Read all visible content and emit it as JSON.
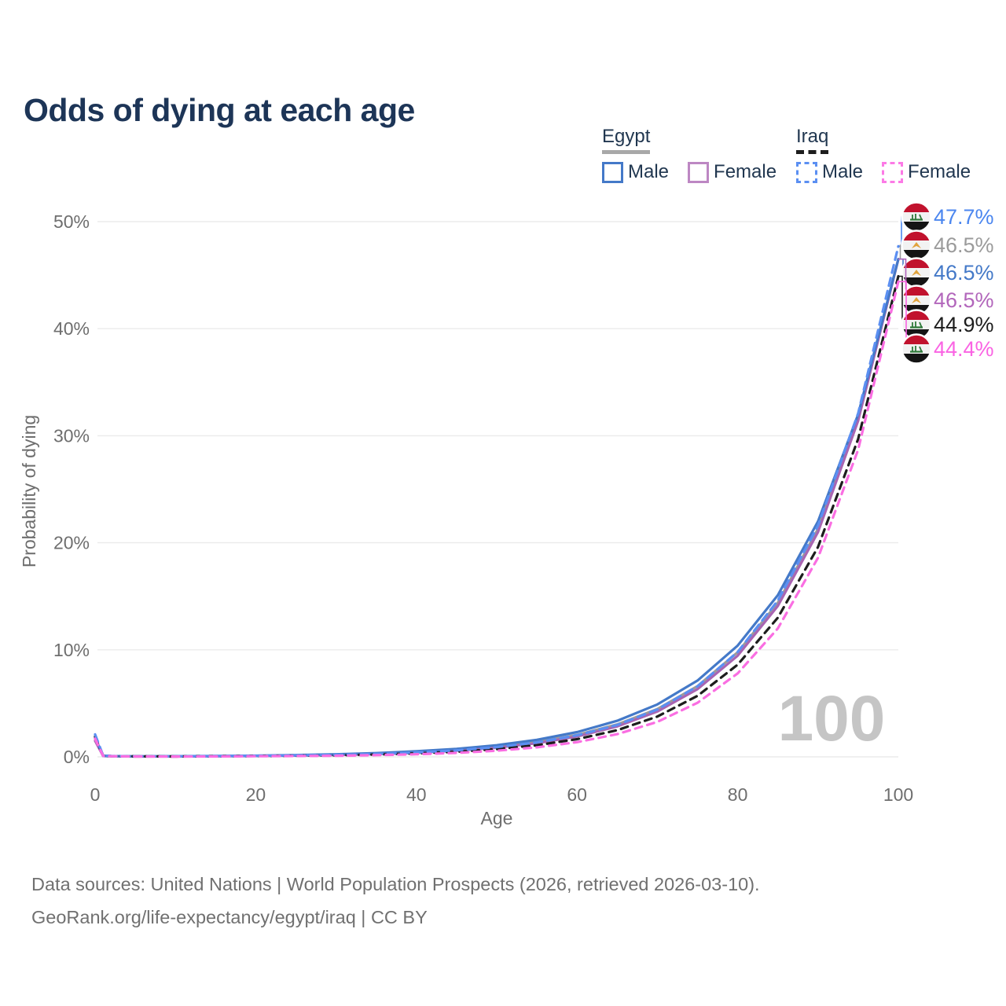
{
  "title": "Odds of dying at each age",
  "legend": {
    "groups": [
      {
        "label": "Egypt",
        "underline_style": "solid",
        "underline_color": "#a8a8a8",
        "items": [
          {
            "label": "Male",
            "color": "#4479c8",
            "style": "solid"
          },
          {
            "label": "Female",
            "color": "#bd87c3",
            "style": "solid"
          }
        ]
      },
      {
        "label": "Iraq",
        "underline_style": "dashed",
        "underline_color": "#1d1d1d",
        "items": [
          {
            "label": "Male",
            "color": "#5b8ff2",
            "style": "dashed"
          },
          {
            "label": "Female",
            "color": "#fc7ae6",
            "style": "dashed"
          }
        ]
      }
    ]
  },
  "watermark": "100",
  "chart_data": {
    "type": "line",
    "title": "Odds of dying at each age",
    "xlabel": "Age",
    "ylabel": "Probability of dying",
    "xlim": [
      0,
      100
    ],
    "ylim": [
      0,
      50
    ],
    "grid": true,
    "y_ticks": [
      {
        "value": 0,
        "label": "0%"
      },
      {
        "value": 10,
        "label": "10%"
      },
      {
        "value": 20,
        "label": "20%"
      },
      {
        "value": 30,
        "label": "30%"
      },
      {
        "value": 40,
        "label": "40%"
      },
      {
        "value": 50,
        "label": "50%"
      }
    ],
    "x_ticks": [
      {
        "value": 0,
        "label": "0"
      },
      {
        "value": 20,
        "label": "20"
      },
      {
        "value": 40,
        "label": "40"
      },
      {
        "value": 60,
        "label": "60"
      },
      {
        "value": 80,
        "label": "80"
      },
      {
        "value": 100,
        "label": "100"
      }
    ],
    "ages": [
      0,
      1,
      2,
      5,
      10,
      15,
      20,
      25,
      30,
      35,
      40,
      45,
      50,
      55,
      60,
      65,
      70,
      75,
      80,
      85,
      90,
      95,
      100
    ],
    "series": [
      {
        "name": "Egypt Both sexes",
        "color": "#9b9b9b",
        "dash": null,
        "values": [
          1.7,
          0.09,
          0.06,
          0.04,
          0.05,
          0.06,
          0.09,
          0.13,
          0.2,
          0.29,
          0.43,
          0.63,
          0.94,
          1.39,
          2.05,
          3.03,
          4.47,
          6.61,
          9.77,
          14.4,
          21.3,
          31.5,
          46.5
        ]
      },
      {
        "name": "Egypt Female",
        "color": "#a965b2",
        "dash": null,
        "values": [
          1.5,
          0.08,
          0.05,
          0.04,
          0.04,
          0.05,
          0.08,
          0.12,
          0.17,
          0.26,
          0.38,
          0.57,
          0.85,
          1.27,
          1.9,
          2.84,
          4.24,
          6.33,
          9.45,
          14.1,
          21.0,
          31.4,
          46.5
        ]
      },
      {
        "name": "Egypt Male",
        "color": "#4479c8",
        "dash": null,
        "values": [
          1.8,
          0.1,
          0.07,
          0.05,
          0.06,
          0.08,
          0.11,
          0.17,
          0.24,
          0.35,
          0.52,
          0.75,
          1.09,
          1.59,
          2.31,
          3.37,
          4.9,
          7.13,
          10.4,
          15.1,
          22.0,
          32.0,
          46.5
        ]
      },
      {
        "name": "Iraq Both sexes",
        "color": "#1d1d1d",
        "dash": "9 7",
        "values": [
          1.9,
          0.11,
          0.07,
          0.05,
          0.04,
          0.06,
          0.08,
          0.11,
          0.15,
          0.21,
          0.32,
          0.48,
          0.72,
          1.09,
          1.65,
          2.49,
          3.77,
          5.7,
          8.61,
          13.0,
          19.6,
          29.7,
          44.9
        ]
      },
      {
        "name": "Iraq Male",
        "color": "#5b8ff2",
        "dash": "10 7",
        "values": [
          2.1,
          0.12,
          0.08,
          0.05,
          0.05,
          0.07,
          0.1,
          0.14,
          0.19,
          0.28,
          0.41,
          0.61,
          0.91,
          1.35,
          2.01,
          2.98,
          4.43,
          6.59,
          9.8,
          14.6,
          21.6,
          32.1,
          47.7
        ]
      },
      {
        "name": "Iraq Female",
        "color": "#fa6ee2",
        "dash": "9 7",
        "values": [
          1.7,
          0.09,
          0.06,
          0.04,
          0.03,
          0.04,
          0.06,
          0.08,
          0.1,
          0.16,
          0.24,
          0.37,
          0.57,
          0.89,
          1.37,
          2.12,
          3.27,
          5.05,
          7.8,
          12.0,
          18.6,
          28.7,
          44.4
        ]
      }
    ],
    "end_labels": [
      {
        "series": "Iraq Male",
        "value": 47.7,
        "label": "47.7%",
        "color": "#4b86ef",
        "flag": "iraq"
      },
      {
        "series": "Egypt Both sexes",
        "value": 46.5,
        "label": "46.5%",
        "color": "#9b9b9b",
        "flag": "egypt"
      },
      {
        "series": "Egypt Male",
        "value": 46.5,
        "label": "46.5%",
        "color": "#4479c8",
        "flag": "egypt"
      },
      {
        "series": "Egypt Female",
        "value": 46.5,
        "label": "46.5%",
        "color": "#b266bb",
        "flag": "egypt"
      },
      {
        "series": "Iraq Both sexes",
        "value": 44.9,
        "label": "44.9%",
        "color": "#1d1d1d",
        "flag": "iraq"
      },
      {
        "series": "Iraq Female",
        "value": 44.4,
        "label": "44.4%",
        "color": "#fa63e3",
        "flag": "iraq"
      }
    ]
  },
  "footer": {
    "line1": "Data sources: United Nations | World Population Prospects (2026, retrieved 2026-03-10).",
    "line2": "GeoRank.org/life-expectancy/egypt/iraq | CC BY"
  }
}
